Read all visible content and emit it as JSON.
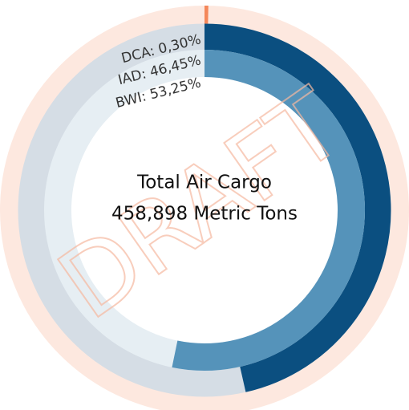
{
  "chart_data": {
    "type": "radial_bar",
    "title": "Total Air Cargo",
    "subtitle": "458,898 Metric Tons",
    "annotation": "DRAFT",
    "values": [
      0.3,
      46.45,
      53.25
    ],
    "value_labels": [
      "DCA: 0,30%",
      "IAD: 46,45%",
      "BWI: 53,25%"
    ],
    "colors": [
      "#f4875a",
      "#0b4f80",
      "#5593ba"
    ],
    "track_colors": [
      "#fde8df",
      "#d5dde5",
      "#e6eef3"
    ],
    "ylim": [
      0,
      100
    ]
  }
}
